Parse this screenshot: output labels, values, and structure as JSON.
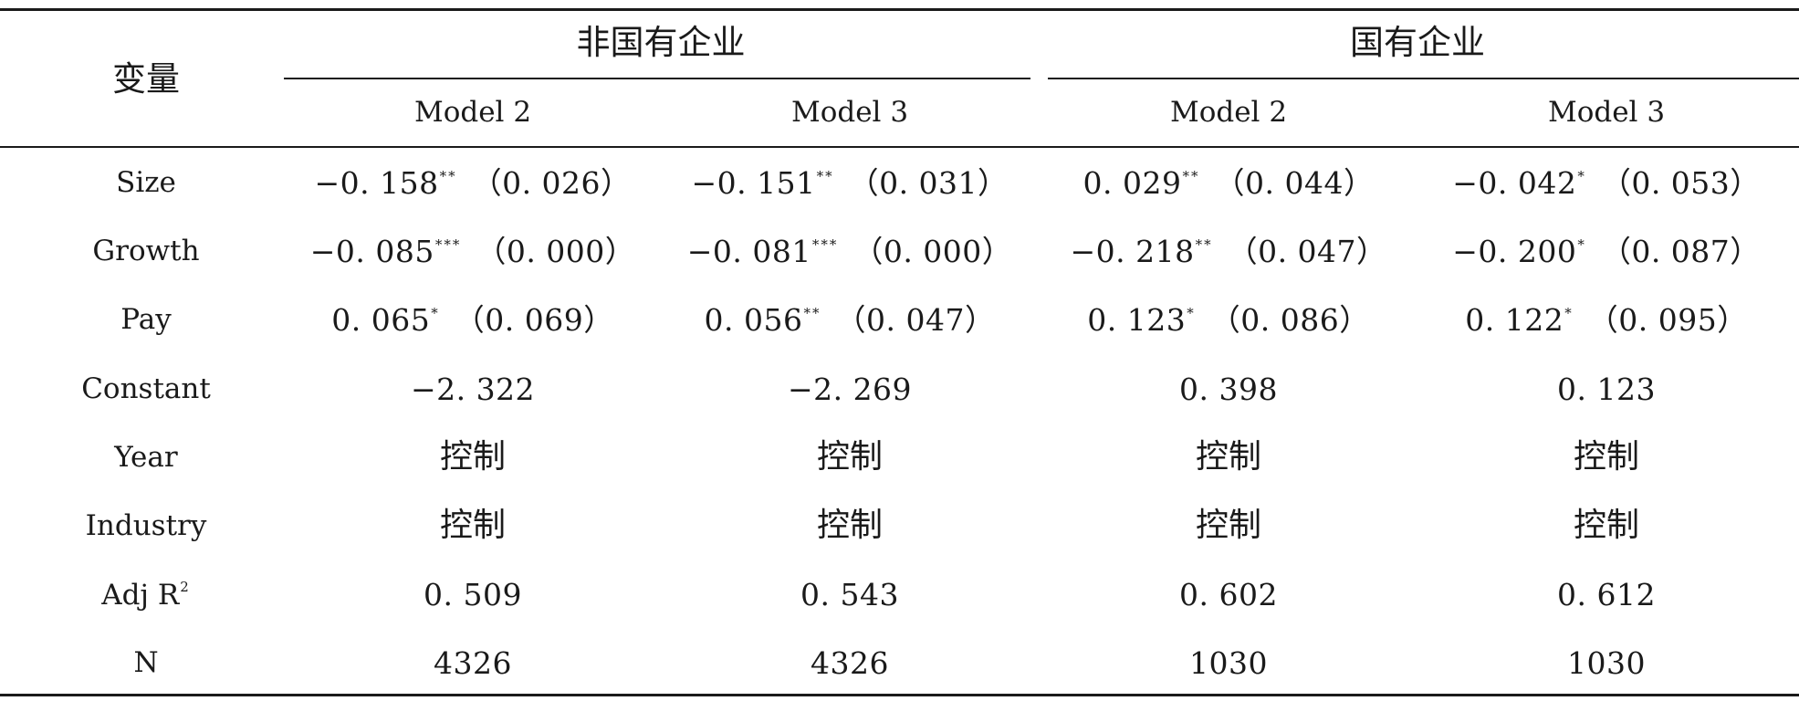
{
  "table": {
    "variable_header": "变量",
    "groups": [
      {
        "label": "非国有企业"
      },
      {
        "label": "国有企业"
      }
    ],
    "models": [
      "Model 2",
      "Model 3",
      "Model 2",
      "Model 3"
    ],
    "rows": [
      {
        "label": "Size",
        "cells": [
          {
            "coef": "−0. 158",
            "stars": "**",
            "se": "（0. 026）"
          },
          {
            "coef": "−0. 151",
            "stars": "**",
            "se": "（0. 031）"
          },
          {
            "coef": "0. 029",
            "stars": "**",
            "se": "（0. 044）"
          },
          {
            "coef": "−0. 042",
            "stars": "*",
            "se": "（0. 053）"
          }
        ]
      },
      {
        "label": "Growth",
        "cells": [
          {
            "coef": "−0. 085",
            "stars": "***",
            "se": "（0. 000）"
          },
          {
            "coef": "−0. 081",
            "stars": "***",
            "se": "（0. 000）"
          },
          {
            "coef": "−0. 218",
            "stars": "**",
            "se": "（0. 047）"
          },
          {
            "coef": "−0. 200",
            "stars": "*",
            "se": "（0. 087）"
          }
        ]
      },
      {
        "label": "Pay",
        "cells": [
          {
            "coef": "0. 065",
            "stars": "*",
            "se": "（0. 069）"
          },
          {
            "coef": "0. 056",
            "stars": "**",
            "se": "（0. 047）"
          },
          {
            "coef": "0. 123",
            "stars": "*",
            "se": "（0. 086）"
          },
          {
            "coef": "0. 122",
            "stars": "*",
            "se": "（0. 095）"
          }
        ]
      },
      {
        "label": "Constant",
        "cells": [
          {
            "coef": "−2. 322",
            "stars": "",
            "se": ""
          },
          {
            "coef": "−2. 269",
            "stars": "",
            "se": ""
          },
          {
            "coef": "0. 398",
            "stars": "",
            "se": ""
          },
          {
            "coef": "0. 123",
            "stars": "",
            "se": ""
          }
        ]
      },
      {
        "label": "Year",
        "cells": [
          {
            "coef": "控制",
            "stars": "",
            "se": ""
          },
          {
            "coef": "控制",
            "stars": "",
            "se": ""
          },
          {
            "coef": "控制",
            "stars": "",
            "se": ""
          },
          {
            "coef": "控制",
            "stars": "",
            "se": ""
          }
        ]
      },
      {
        "label": "Industry",
        "cells": [
          {
            "coef": "控制",
            "stars": "",
            "se": ""
          },
          {
            "coef": "控制",
            "stars": "",
            "se": ""
          },
          {
            "coef": "控制",
            "stars": "",
            "se": ""
          },
          {
            "coef": "控制",
            "stars": "",
            "se": ""
          }
        ]
      },
      {
        "label": "Adj R",
        "label_sup": "2",
        "cells": [
          {
            "coef": "0. 509",
            "stars": "",
            "se": ""
          },
          {
            "coef": "0. 543",
            "stars": "",
            "se": ""
          },
          {
            "coef": "0. 602",
            "stars": "",
            "se": ""
          },
          {
            "coef": "0. 612",
            "stars": "",
            "se": ""
          }
        ]
      },
      {
        "label": "N",
        "cells": [
          {
            "coef": "4326",
            "stars": "",
            "se": ""
          },
          {
            "coef": "4326",
            "stars": "",
            "se": ""
          },
          {
            "coef": "1030",
            "stars": "",
            "se": ""
          },
          {
            "coef": "1030",
            "stars": "",
            "se": ""
          }
        ]
      }
    ]
  }
}
